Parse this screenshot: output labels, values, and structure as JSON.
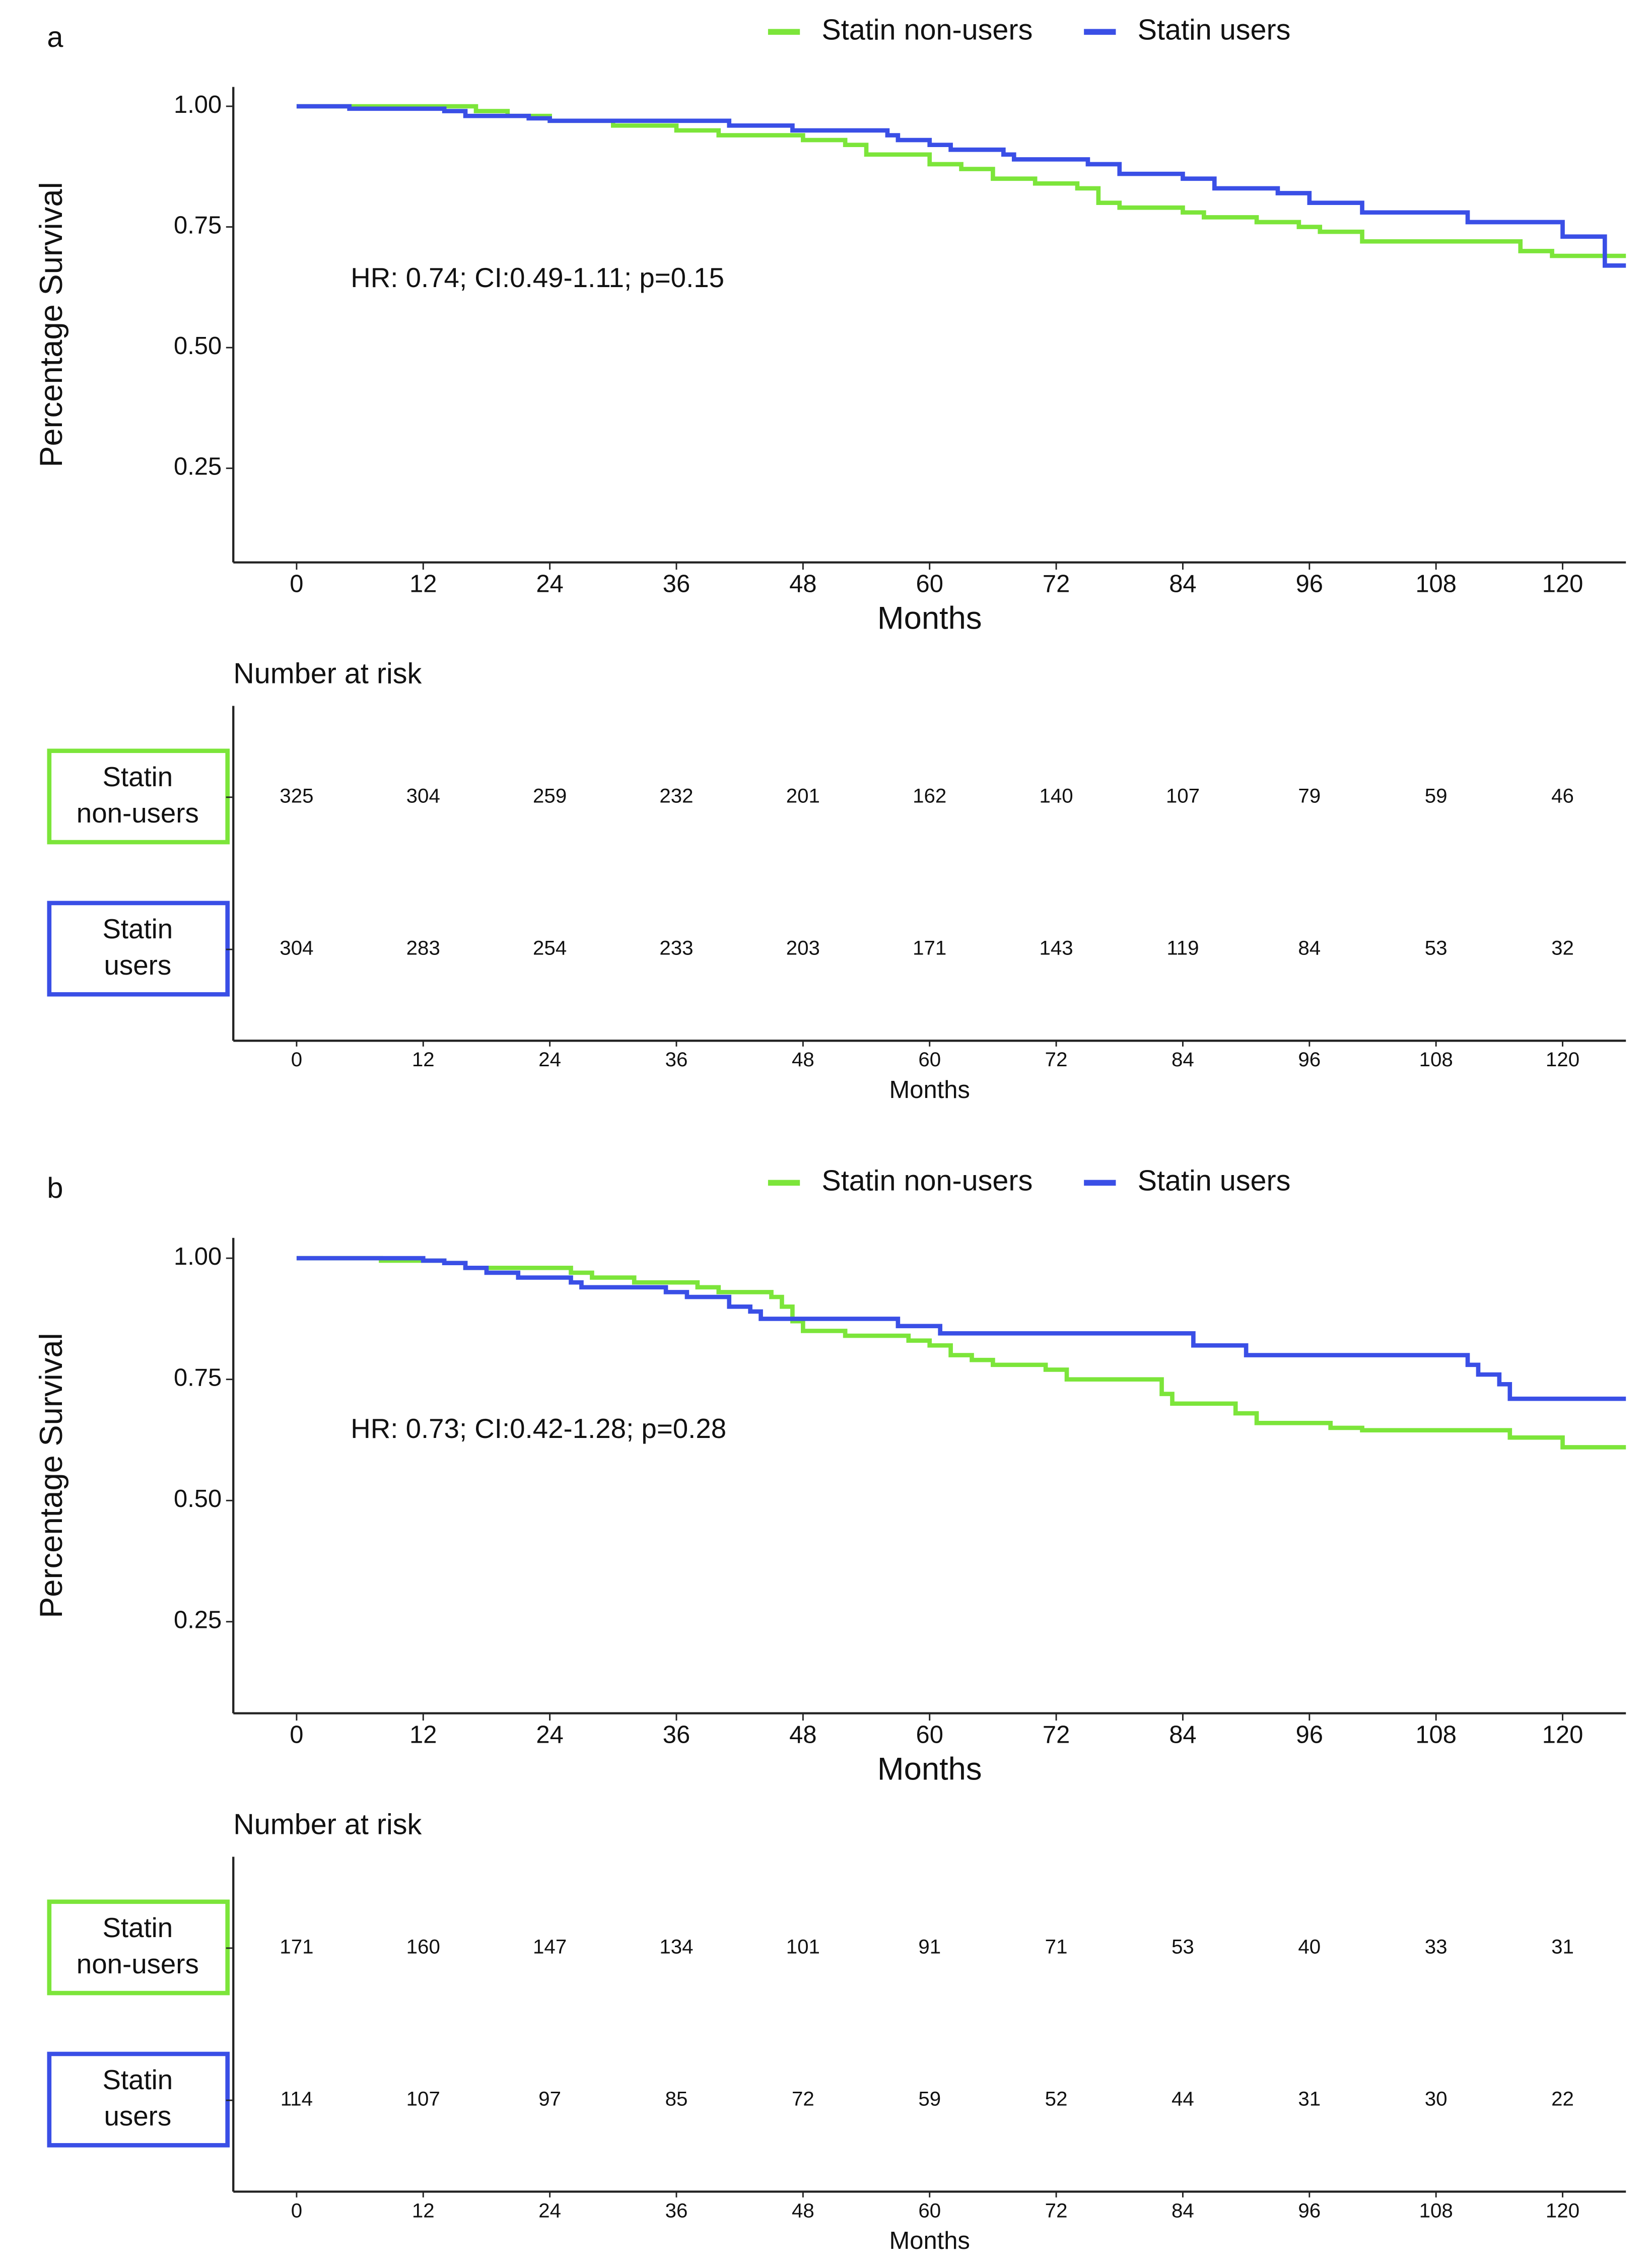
{
  "chart_data": [
    {
      "type": "line",
      "panel": "a",
      "legend": "top",
      "ylabel": "Percentage Survival",
      "xlabel": "Months",
      "annotation": "HR: 0.74; CI:0.49-1.11; p=0.15",
      "xlim": [
        -6,
        126
      ],
      "ylim": [
        0.055,
        1.04
      ],
      "xticks": [
        0,
        12,
        24,
        36,
        48,
        60,
        72,
        84,
        96,
        108,
        120
      ],
      "yticks": [
        0.25,
        {
          "value": 0.5,
          "label": "0.50"
        },
        0.75,
        {
          "value": 1,
          "label": "1.00"
        }
      ],
      "series": [
        {
          "name": "Statin non-users",
          "color": "#7ce53a",
          "x": [
            0,
            17,
            20,
            24,
            30,
            36,
            40,
            48,
            52,
            54,
            60,
            63,
            66,
            70,
            74,
            76,
            78,
            84,
            86,
            91,
            95,
            97,
            101,
            116,
            119,
            126
          ],
          "values": [
            1.0,
            0.99,
            0.98,
            0.97,
            0.96,
            0.95,
            0.94,
            0.93,
            0.92,
            0.9,
            0.88,
            0.87,
            0.85,
            0.84,
            0.83,
            0.8,
            0.79,
            0.78,
            0.77,
            0.76,
            0.75,
            0.74,
            0.72,
            0.7,
            0.69,
            0.69
          ]
        },
        {
          "name": "Statin users",
          "color": "#3a4fe6",
          "x": [
            0,
            5,
            14,
            16,
            22,
            24,
            41,
            47,
            56,
            57,
            60,
            62,
            67,
            68,
            75,
            78,
            84,
            87,
            93,
            96,
            101,
            111,
            120,
            124,
            126
          ],
          "values": [
            1.0,
            0.995,
            0.99,
            0.98,
            0.975,
            0.97,
            0.96,
            0.95,
            0.94,
            0.93,
            0.92,
            0.91,
            0.9,
            0.89,
            0.88,
            0.86,
            0.85,
            0.83,
            0.82,
            0.8,
            0.78,
            0.76,
            0.73,
            0.67,
            0.67
          ]
        }
      ],
      "risk_table": {
        "title": "Number at risk",
        "xlabel": "Months",
        "xticks": [
          0,
          12,
          24,
          36,
          48,
          60,
          72,
          84,
          96,
          108,
          120
        ],
        "rows": [
          {
            "name": "Statin non-users",
            "color": "#7ce53a",
            "values": [
              325,
              304,
              259,
              232,
              201,
              162,
              140,
              107,
              79,
              59,
              46
            ]
          },
          {
            "name": "Statin users",
            "color": "#3a4fe6",
            "values": [
              304,
              283,
              254,
              233,
              203,
              171,
              143,
              119,
              84,
              53,
              32
            ]
          }
        ]
      }
    },
    {
      "type": "line",
      "panel": "b",
      "legend": "top",
      "ylabel": "Percentage Survival",
      "xlabel": "Months",
      "annotation": "HR: 0.73; CI:0.42-1.28; p=0.28",
      "xlim": [
        -6,
        126
      ],
      "ylim": [
        0.061,
        1.042
      ],
      "xticks": [
        0,
        12,
        24,
        36,
        48,
        60,
        72,
        84,
        96,
        108,
        120
      ],
      "yticks": [
        0.25,
        {
          "value": 0.5,
          "label": "0.50"
        },
        0.75,
        {
          "value": 1,
          "label": "1.00"
        }
      ],
      "series": [
        {
          "name": "Statin non-users",
          "color": "#7ce53a",
          "x": [
            0,
            8,
            14,
            16,
            26,
            28,
            32,
            38,
            40,
            45,
            46,
            47,
            48,
            52,
            58,
            60,
            62,
            64,
            66,
            71,
            73,
            82,
            83,
            89,
            91,
            98,
            101,
            115,
            120,
            126
          ],
          "values": [
            1.0,
            0.995,
            0.99,
            0.98,
            0.97,
            0.96,
            0.95,
            0.94,
            0.93,
            0.92,
            0.9,
            0.87,
            0.85,
            0.84,
            0.83,
            0.82,
            0.8,
            0.79,
            0.78,
            0.77,
            0.75,
            0.72,
            0.7,
            0.68,
            0.66,
            0.65,
            0.645,
            0.63,
            0.61,
            0.61
          ]
        },
        {
          "name": "Statin users",
          "color": "#3a4fe6",
          "x": [
            0,
            12,
            14,
            16,
            18,
            21,
            26,
            27,
            35,
            37,
            41,
            43,
            44,
            57,
            61,
            85,
            90,
            111,
            112,
            114,
            115,
            126
          ],
          "values": [
            1.0,
            0.995,
            0.99,
            0.98,
            0.97,
            0.96,
            0.95,
            0.94,
            0.93,
            0.92,
            0.9,
            0.89,
            0.875,
            0.86,
            0.845,
            0.82,
            0.8,
            0.78,
            0.76,
            0.74,
            0.71,
            0.71
          ]
        }
      ],
      "risk_table": {
        "title": "Number at risk",
        "xlabel": "Months",
        "xticks": [
          0,
          12,
          24,
          36,
          48,
          60,
          72,
          84,
          96,
          108,
          120
        ],
        "rows": [
          {
            "name": "Statin non-users",
            "color": "#7ce53a",
            "values": [
              171,
              160,
              147,
              134,
              101,
              91,
              71,
              53,
              40,
              33,
              31
            ]
          },
          {
            "name": "Statin users",
            "color": "#3a4fe6",
            "values": [
              114,
              107,
              97,
              85,
              72,
              59,
              52,
              44,
              31,
              30,
              22
            ]
          }
        ]
      }
    }
  ]
}
